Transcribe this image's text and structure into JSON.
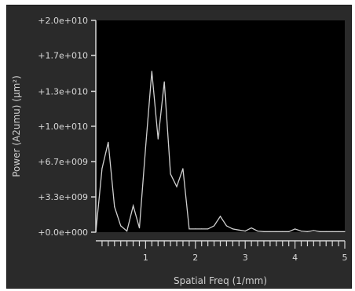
{
  "chart_data": {
    "type": "line",
    "title": "",
    "xlabel": "Spatial Freq (1/mm)",
    "ylabel": "Power (A2umu) (µm²)",
    "xlim": [
      0,
      5
    ],
    "ylim": [
      0,
      20000000000
    ],
    "x_ticks": [
      1,
      2,
      3,
      4,
      5
    ],
    "x_minor_step": 0.125,
    "y_tick_values": [
      0,
      3330000000,
      6670000000,
      10000000000,
      13300000000,
      16700000000,
      20000000000
    ],
    "y_tick_labels": [
      "+0.0e+000",
      "+3.3e+009",
      "+6.7e+009",
      "+1.0e+010",
      "+1.3e+010",
      "+1.7e+010",
      "+2.0e+010"
    ],
    "grid": false,
    "legend": "none",
    "colors": {
      "panel": "#2a2a2a",
      "plot_bg": "#000000",
      "axis": "#d8d8d8",
      "line": "#d0d0d0",
      "text": "#d8d8d8"
    },
    "series": [
      {
        "x": [
          0.0,
          0.125,
          0.25,
          0.375,
          0.5,
          0.625,
          0.75,
          0.875,
          1.0,
          1.125,
          1.25,
          1.375,
          1.5,
          1.625,
          1.75,
          1.875,
          2.0,
          2.125,
          2.25,
          2.375,
          2.5,
          2.625,
          2.75,
          2.875,
          3.0,
          3.125,
          3.25,
          3.375,
          3.5,
          3.625,
          3.75,
          3.875,
          4.0,
          4.125,
          4.25,
          4.375,
          4.5,
          4.625,
          4.75,
          4.875,
          5.0
        ],
        "values": [
          0,
          6000000000,
          8500000000,
          2400000000,
          600000000,
          100000000,
          2500000000,
          400000000,
          8000000000,
          15200000000,
          8800000000,
          14200000000,
          5500000000,
          4300000000,
          6000000000,
          300000000,
          300000000,
          300000000,
          300000000,
          600000000,
          1500000000,
          600000000,
          300000000,
          200000000,
          100000000,
          400000000,
          100000000,
          50000000,
          50000000,
          50000000,
          50000000,
          50000000,
          300000000,
          100000000,
          50000000,
          150000000,
          50000000,
          50000000,
          50000000,
          50000000,
          50000000
        ]
      }
    ]
  }
}
